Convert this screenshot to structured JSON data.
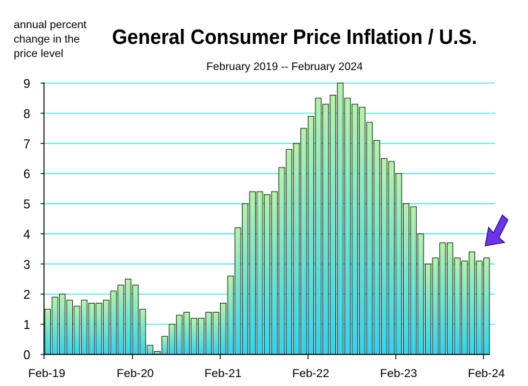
{
  "chart_data": {
    "type": "bar",
    "title": "General Consumer Price Inflation / U.S.",
    "subtitle": "February 2019 -- February 2024",
    "ylabel_lines": [
      "annual percent",
      "change in the",
      "price level"
    ],
    "xlabel": "",
    "ylim": [
      0,
      9
    ],
    "yticks": [
      "0",
      "1",
      "2",
      "3",
      "4",
      "5",
      "6",
      "7",
      "8",
      "9"
    ],
    "xtick_labels": [
      "Feb-19",
      "Feb-20",
      "Feb-21",
      "Feb-22",
      "Feb-23",
      "Feb-24"
    ],
    "grid": true,
    "colors": {
      "bar_top": "#b3f5a6",
      "bar_bottom": "#2ad6f2",
      "grid": "#33e5e5",
      "arrow": "#6a33ee"
    },
    "categories": [
      "Feb-19",
      "Mar-19",
      "Apr-19",
      "May-19",
      "Jun-19",
      "Jul-19",
      "Aug-19",
      "Sep-19",
      "Oct-19",
      "Nov-19",
      "Dec-19",
      "Jan-20",
      "Feb-20",
      "Mar-20",
      "Apr-20",
      "May-20",
      "Jun-20",
      "Jul-20",
      "Aug-20",
      "Sep-20",
      "Oct-20",
      "Nov-20",
      "Dec-20",
      "Jan-21",
      "Feb-21",
      "Mar-21",
      "Apr-21",
      "May-21",
      "Jun-21",
      "Jul-21",
      "Aug-21",
      "Sep-21",
      "Oct-21",
      "Nov-21",
      "Dec-21",
      "Jan-22",
      "Feb-22",
      "Mar-22",
      "Apr-22",
      "May-22",
      "Jun-22",
      "Jul-22",
      "Aug-22",
      "Sep-22",
      "Oct-22",
      "Nov-22",
      "Dec-22",
      "Jan-23",
      "Feb-23",
      "Mar-23",
      "Apr-23",
      "May-23",
      "Jun-23",
      "Jul-23",
      "Aug-23",
      "Sep-23",
      "Oct-23",
      "Nov-23",
      "Dec-23",
      "Jan-24",
      "Feb-24"
    ],
    "values": [
      1.5,
      1.9,
      2.0,
      1.8,
      1.6,
      1.8,
      1.7,
      1.7,
      1.8,
      2.1,
      2.3,
      2.5,
      2.3,
      1.5,
      0.3,
      0.1,
      0.6,
      1.0,
      1.3,
      1.4,
      1.2,
      1.2,
      1.4,
      1.4,
      1.7,
      2.6,
      4.2,
      5.0,
      5.4,
      5.4,
      5.3,
      5.4,
      6.2,
      6.8,
      7.0,
      7.5,
      7.9,
      8.5,
      8.3,
      8.6,
      9.1,
      8.5,
      8.3,
      8.2,
      7.7,
      7.1,
      6.5,
      6.4,
      6.0,
      5.0,
      4.9,
      4.0,
      3.0,
      3.2,
      3.7,
      3.7,
      3.2,
      3.1,
      3.4,
      3.1,
      3.2
    ]
  }
}
